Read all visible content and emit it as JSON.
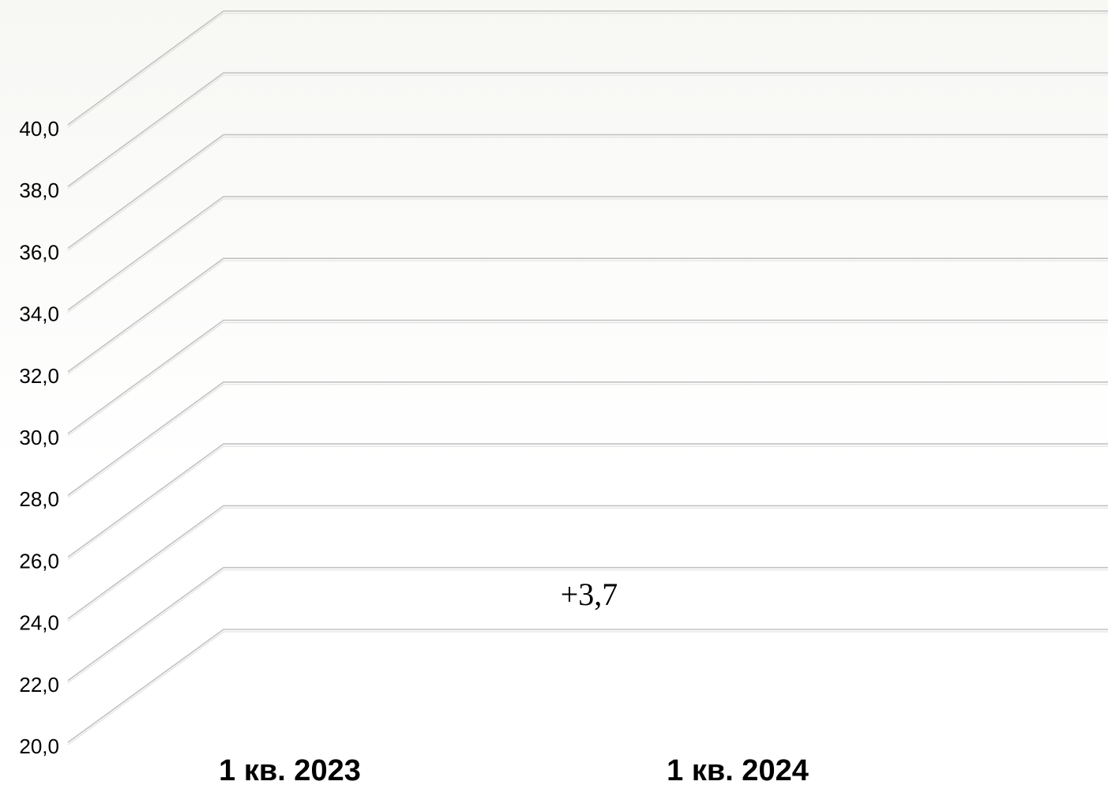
{
  "chart_data": {
    "type": "bar",
    "title": "",
    "xlabel": "",
    "ylabel": "",
    "categories": [
      "1 кв. 2023",
      "1 кв. 2024"
    ],
    "yticks": [
      "20,0",
      "22,0",
      "24,0",
      "26,0",
      "28,0",
      "30,0",
      "32,0",
      "34,0",
      "36,0",
      "38,0",
      "40,0"
    ],
    "ylim": [
      20,
      40
    ],
    "grid": true,
    "annotation": "+3,7"
  }
}
